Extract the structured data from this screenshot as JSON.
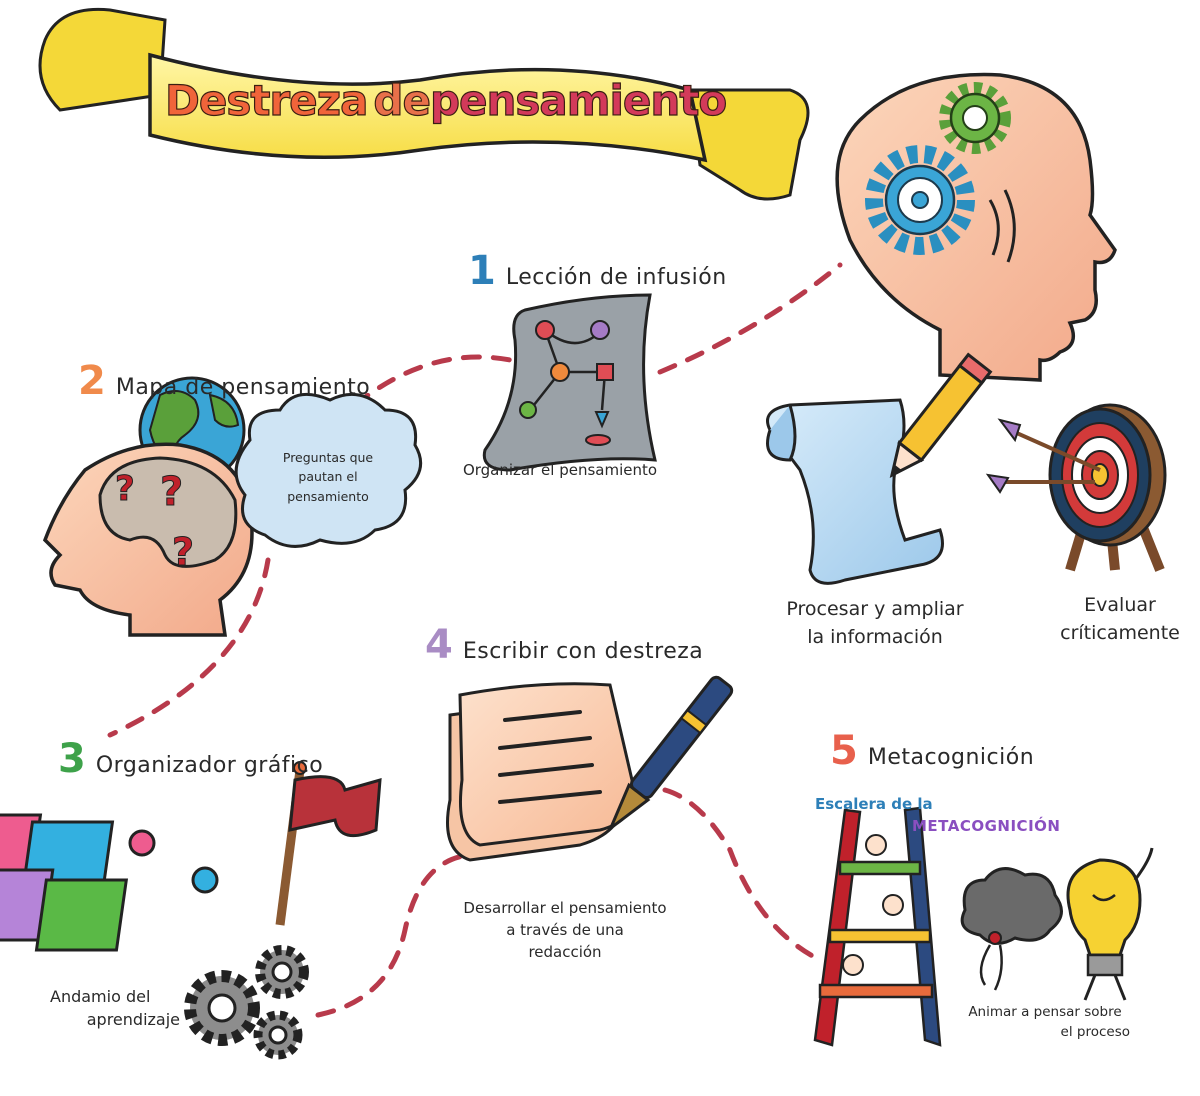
{
  "title": {
    "part1": "Destreza",
    "part2": "de",
    "part3": "pensamiento"
  },
  "steps": [
    {
      "number": "1",
      "label": "Lección de infusión",
      "color": "#2d7fb8"
    },
    {
      "number": "2",
      "label": "Mapa de pensamiento",
      "color": "#f08a4b"
    },
    {
      "number": "3",
      "label": "Organizador gráfico",
      "color": "#3ea24a"
    },
    {
      "number": "4",
      "label": "Escribir con destreza",
      "color": "#a98cc4"
    },
    {
      "number": "5",
      "label": "Metacognición",
      "color": "#e8604c"
    }
  ],
  "captions": {
    "organize": "Organizar el pensamiento",
    "questions": [
      "Preguntas que",
      "pautan el",
      "pensamiento"
    ],
    "process": [
      "Procesar y ampliar",
      "la información"
    ],
    "evaluate": [
      "Evaluar",
      "críticamente"
    ],
    "develop": [
      "Desarrollar el pensamiento",
      "a través de una",
      "redacción"
    ],
    "scaffold": [
      "Andamio del",
      "aprendizaje"
    ],
    "encourage": [
      "Animar a pensar sobre",
      "el proceso"
    ]
  },
  "ladder": {
    "line1": "Escalera de la",
    "line2": "METACOGNICIÓN"
  },
  "icons": [
    "head-gears-icon",
    "scroll-pencil-icon",
    "target-arrows-icon",
    "map-paper-icon",
    "head-questions-icon",
    "globe-icon",
    "cloud-icon",
    "puzzle-icon",
    "flag-icon",
    "gears-icon",
    "notebook-pen-icon",
    "ladder-icon",
    "storm-cloud-icon",
    "lightbulb-icon"
  ]
}
